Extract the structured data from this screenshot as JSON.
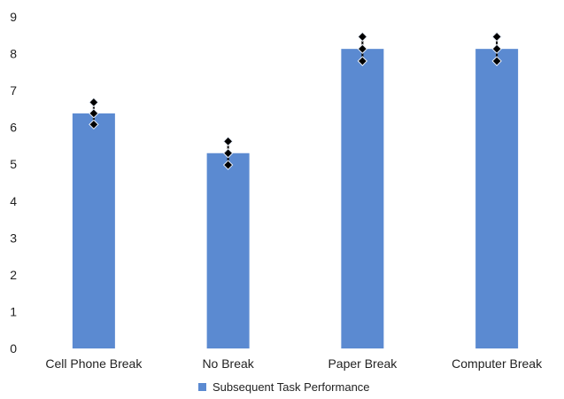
{
  "chart_data": {
    "type": "bar",
    "title": "",
    "xlabel": "",
    "ylabel": "",
    "categories": [
      "Cell Phone Break",
      "No Break",
      "Paper Break",
      "Computer Break"
    ],
    "series": [
      {
        "name": "Subsequent Task Performance",
        "values": [
          6.38,
          5.3,
          8.13,
          8.13
        ],
        "error": [
          0.3,
          0.32,
          0.33,
          0.33
        ],
        "color": "#5b8ad1"
      }
    ],
    "ylim": [
      0,
      9
    ],
    "yticks": [
      "0",
      "1",
      "2",
      "3",
      "4",
      "5",
      "6",
      "7",
      "8",
      "9"
    ],
    "grid": false,
    "legend_position": "bottom"
  }
}
